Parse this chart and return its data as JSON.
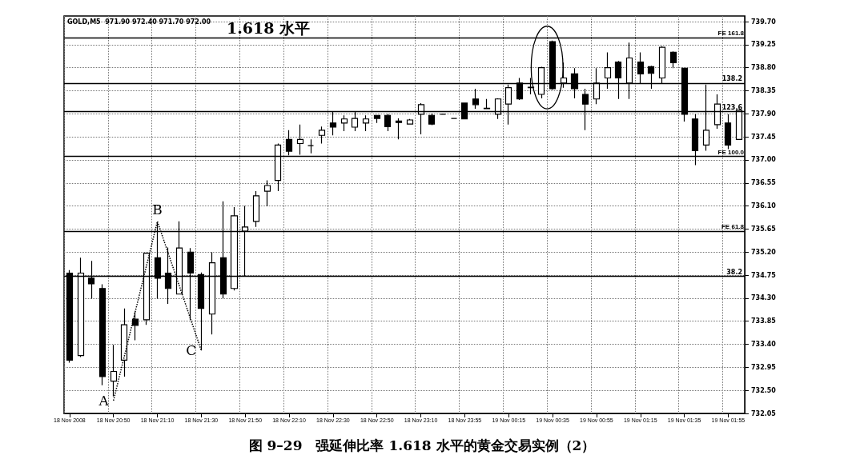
{
  "chart_data": {
    "type": "candlestick",
    "title": "图 9–29　强延伸比率 1.618 水平的黄金交易实例（2）",
    "categories": [
      "18 Nov 2008",
      null,
      null,
      null,
      "18 Nov 20:50",
      null,
      null,
      null,
      "18 Nov 21:10",
      null,
      null,
      null,
      "18 Nov 21:30",
      null,
      null,
      null,
      "18 Nov 21:50",
      null,
      null,
      null,
      "18 Nov 22:10",
      null,
      null,
      null,
      "18 Nov 22:30",
      null,
      null,
      null,
      "18 Nov 22:50",
      null,
      null,
      null,
      "18 Nov 23:10",
      null,
      null,
      null,
      "18 Nov 23:55",
      null,
      null,
      null,
      "19 Nov 00:15",
      null,
      null,
      null,
      "19 Nov 00:35",
      null,
      null,
      null,
      "19 Nov 00:55",
      null,
      null,
      null,
      "19 Nov 01:15",
      null,
      null,
      null,
      "19 Nov 01:35",
      null,
      null,
      null,
      "19 Nov 01:55",
      null
    ],
    "ohlc": [
      [
        734.79,
        734.85,
        733.04,
        733.09
      ],
      [
        733.18,
        735.09,
        733.15,
        734.79
      ],
      [
        734.69,
        735.03,
        734.29,
        734.58
      ],
      [
        734.49,
        734.57,
        732.6,
        732.77
      ],
      [
        732.68,
        733.39,
        732.38,
        732.87
      ],
      [
        733.09,
        734.1,
        732.77,
        733.78
      ],
      [
        733.89,
        734.03,
        733.48,
        733.77
      ],
      [
        733.88,
        735.18,
        733.78,
        735.18
      ],
      [
        735.09,
        735.77,
        734.29,
        734.69
      ],
      [
        734.79,
        735.29,
        734.19,
        734.49
      ],
      [
        734.38,
        735.8,
        734.38,
        735.28
      ],
      [
        735.2,
        735.28,
        733.88,
        734.79
      ],
      [
        734.76,
        734.8,
        733.28,
        734.1
      ],
      [
        733.99,
        735.2,
        733.59,
        734.99
      ],
      [
        735.09,
        736.19,
        734.3,
        734.38
      ],
      [
        734.49,
        736.08,
        734.45,
        735.91
      ],
      [
        735.61,
        736.1,
        734.73,
        735.69
      ],
      [
        735.8,
        736.39,
        735.69,
        736.3
      ],
      [
        736.39,
        736.6,
        736.1,
        736.5
      ],
      [
        736.6,
        737.32,
        736.39,
        737.29
      ],
      [
        737.4,
        737.58,
        737.09,
        737.17
      ],
      [
        737.32,
        737.69,
        737.1,
        737.4
      ],
      [
        737.28,
        737.4,
        737.13,
        737.28
      ],
      [
        737.48,
        737.65,
        737.32,
        737.58
      ],
      [
        737.72,
        737.95,
        737.48,
        737.64
      ],
      [
        737.72,
        737.87,
        737.56,
        737.8
      ],
      [
        737.64,
        737.95,
        737.56,
        737.81
      ],
      [
        737.72,
        737.87,
        737.56,
        737.8
      ],
      [
        737.87,
        737.87,
        737.72,
        737.81
      ],
      [
        737.87,
        737.9,
        737.56,
        737.65
      ],
      [
        737.76,
        737.81,
        737.4,
        737.73
      ],
      [
        737.7,
        737.8,
        737.69,
        737.78
      ],
      [
        737.89,
        738.11,
        737.5,
        738.08
      ],
      [
        737.87,
        737.9,
        737.68,
        737.7
      ],
      [
        737.89,
        737.9,
        737.88,
        737.89
      ],
      [
        737.81,
        737.82,
        737.8,
        737.81
      ],
      [
        738.11,
        738.12,
        737.79,
        737.8
      ],
      [
        738.19,
        738.39,
        738.0,
        738.08
      ],
      [
        738.0,
        738.19,
        737.99,
        738.01
      ],
      [
        737.89,
        738.2,
        737.8,
        738.19
      ],
      [
        738.09,
        738.47,
        737.69,
        738.41
      ],
      [
        738.5,
        738.6,
        738.17,
        738.19
      ],
      [
        738.41,
        738.6,
        738.28,
        738.42
      ],
      [
        738.28,
        738.82,
        738.2,
        738.8
      ],
      [
        739.31,
        739.33,
        738.37,
        738.39
      ],
      [
        738.5,
        738.9,
        738.41,
        738.6
      ],
      [
        738.68,
        738.79,
        738.2,
        738.39
      ],
      [
        738.28,
        738.39,
        737.58,
        738.09
      ],
      [
        738.19,
        738.79,
        738.09,
        738.5
      ],
      [
        738.6,
        739.1,
        738.39,
        738.8
      ],
      [
        738.91,
        738.93,
        738.19,
        738.6
      ],
      [
        738.5,
        739.29,
        738.19,
        738.99
      ],
      [
        738.91,
        739.1,
        738.5,
        738.68
      ],
      [
        738.82,
        738.84,
        738.39,
        738.69
      ],
      [
        738.6,
        739.22,
        738.5,
        739.2
      ],
      [
        739.1,
        739.12,
        738.79,
        738.9
      ],
      [
        738.79,
        738.8,
        737.75,
        737.89
      ],
      [
        737.8,
        737.89,
        736.9,
        737.18
      ],
      [
        737.29,
        738.47,
        737.18,
        737.58
      ],
      [
        737.69,
        738.28,
        737.61,
        738.09
      ],
      [
        737.72,
        737.89,
        737.21,
        737.29
      ],
      [
        737.4,
        737.97,
        737.4,
        737.97
      ]
    ],
    "series": [
      {
        "type": "line",
        "x": [
          "18 Nov 20:50",
          "18 Nov 21:10",
          "18 Nov 21:30"
        ],
        "values": [
          732.3,
          735.8,
          733.28
        ],
        "value_labels": [
          "A",
          "B",
          "C"
        ],
        "color": "#000000",
        "line_style": "dotted",
        "marker": "none"
      }
    ],
    "ylim": [
      732.05,
      739.81
    ],
    "yticks": [
      {
        "value": 732.05,
        "label": "732.05"
      },
      {
        "value": 732.5,
        "label": "732.50"
      },
      {
        "value": 732.95,
        "label": "732.95"
      },
      {
        "value": 733.4,
        "label": "733.40"
      },
      {
        "value": 733.85,
        "label": "733.85"
      },
      {
        "value": 734.3,
        "label": "734.30"
      },
      {
        "value": 734.75,
        "label": "734.75"
      },
      {
        "value": 735.2,
        "label": "735.20"
      },
      {
        "value": 735.65,
        "label": "735.65"
      },
      {
        "value": 736.1,
        "label": "736.10"
      },
      {
        "value": 736.55,
        "label": "736.55"
      },
      {
        "value": 737.0,
        "label": "737.00"
      },
      {
        "value": 737.45,
        "label": "737.45"
      },
      {
        "value": 737.9,
        "label": "737.90"
      },
      {
        "value": 738.35,
        "label": "738.35"
      },
      {
        "value": 738.8,
        "label": "738.80"
      },
      {
        "value": 739.25,
        "label": "739.25"
      },
      {
        "value": 739.7,
        "label": "739.70"
      }
    ],
    "grid": true,
    "ref_lines": [
      {
        "axis": "y",
        "value": 739.39,
        "label": "FE 161.8"
      },
      {
        "axis": "y",
        "value": 738.5
      },
      {
        "axis": "y",
        "value": 737.95
      },
      {
        "axis": "y",
        "value": 737.07,
        "label": "FE 100.0"
      },
      {
        "axis": "y",
        "value": 735.61,
        "label": "FE 61.8"
      },
      {
        "axis": "y",
        "value": 734.73
      }
    ],
    "annotations": [
      "GOLD,M5  971.90 972.40 971.70 972.00",
      {
        "text": "1.618 水平",
        "y": 739.39
      },
      {
        "text": "138.2",
        "y": 738.5
      },
      {
        "text": "123.6",
        "y": 737.95
      },
      {
        "text": "38.2",
        "y": 734.73
      }
    ]
  }
}
